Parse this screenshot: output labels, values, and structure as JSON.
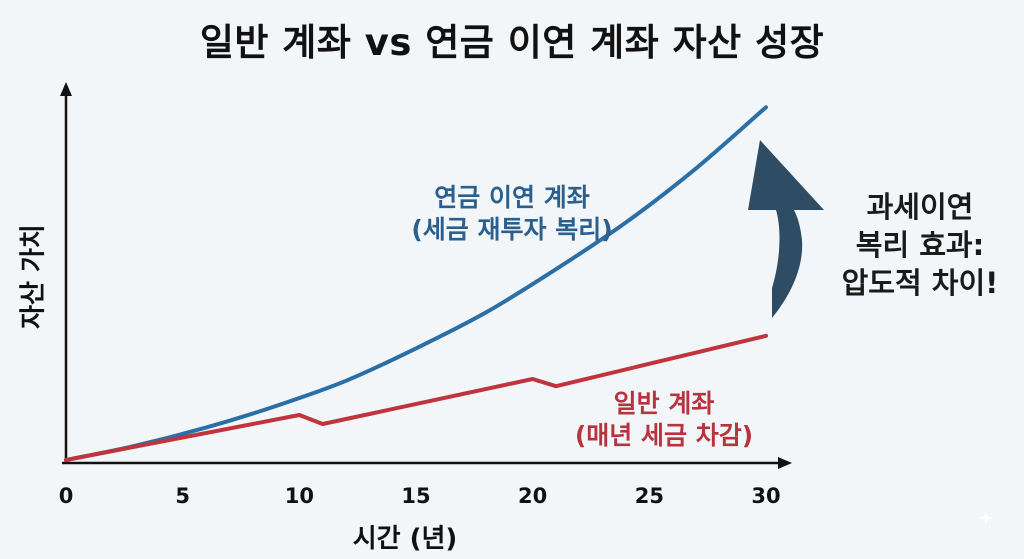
{
  "chart_data": {
    "type": "line",
    "title": "일반 계좌 vs 연금 이연 계좌 자산 성장",
    "xlabel": "시간 (년)",
    "ylabel": "자산 가치",
    "xlim": [
      0,
      30
    ],
    "ylim": [
      0,
      100
    ],
    "x_ticks": [
      "0",
      "5",
      "10",
      "15",
      "20",
      "25",
      "30"
    ],
    "grid": false,
    "series": [
      {
        "key": "pension",
        "label_lines": [
          "연금 이연 계좌",
          "(세금 재투자 복리)"
        ],
        "color": "#2a6fa6",
        "x": [
          0,
          3,
          6,
          9,
          12,
          15,
          18,
          21,
          24,
          27,
          30
        ],
        "y": [
          0,
          4,
          9,
          15,
          22,
          31,
          41,
          53,
          66,
          81,
          98
        ]
      },
      {
        "key": "general",
        "label_lines": [
          "일반 계좌",
          "(매년 세금 차감)"
        ],
        "color": "#c0343e",
        "x": [
          0,
          10,
          11,
          20,
          21,
          30
        ],
        "y": [
          0,
          12.5,
          10,
          22.5,
          20.5,
          34.5
        ]
      }
    ],
    "annotation": {
      "lines": [
        "과세이연",
        "복리 효과:",
        "압도적 차이!"
      ],
      "arrow_color": "#2e4d64"
    }
  }
}
